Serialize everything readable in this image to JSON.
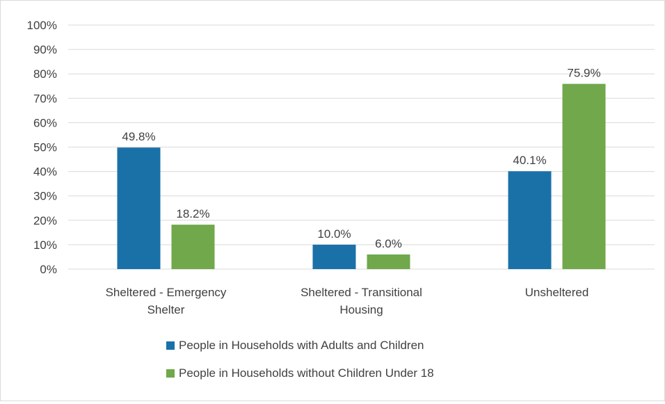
{
  "chart_data": {
    "type": "bar",
    "categories": [
      [
        "Sheltered - Emergency",
        "Shelter"
      ],
      [
        "Sheltered - Transitional",
        "Housing"
      ],
      [
        "Unsheltered"
      ]
    ],
    "series": [
      {
        "name": "People in Households with Adults and Children",
        "color": "#1a71a8",
        "values": [
          49.8,
          10.0,
          40.1
        ],
        "labels": [
          "49.8%",
          "10.0%",
          "40.1%"
        ]
      },
      {
        "name": "People in Households without Children Under 18",
        "color": "#70a84b",
        "values": [
          18.2,
          6.0,
          75.9
        ],
        "labels": [
          "18.2%",
          "6.0%",
          "75.9%"
        ]
      }
    ],
    "ylim": [
      0,
      100
    ],
    "yticks": [
      "0%",
      "10%",
      "20%",
      "30%",
      "40%",
      "50%",
      "60%",
      "70%",
      "80%",
      "90%",
      "100%"
    ],
    "grid": true,
    "legend_position": "bottom",
    "gridline_color": "#d9d9d9"
  }
}
